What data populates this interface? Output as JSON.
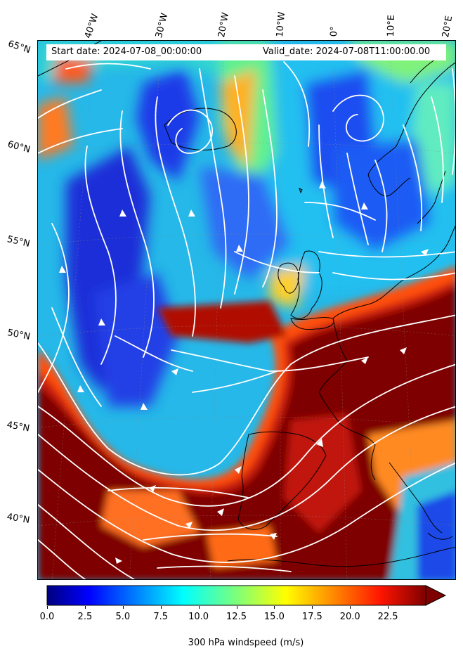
{
  "header": {
    "start_date": "Start date: 2024-07-08_00:00:00",
    "valid_date": "Valid_date: 2024-07-08T11:00:00.00"
  },
  "map": {
    "longitude_labels": [
      "40°W",
      "30°W",
      "20°W",
      "10°W",
      "0°",
      "10°E",
      "20°E"
    ],
    "latitude_labels": [
      "65°N",
      "60°N",
      "55°N",
      "50°N",
      "45°N",
      "40°N"
    ],
    "streamline_color": "#ffffff",
    "coastline_color": "#000000"
  },
  "colorbar": {
    "label": "300 hPa windspeed (m/s)",
    "ticks": [
      "0.0",
      "2.5",
      "5.0",
      "7.5",
      "10.0",
      "12.5",
      "15.0",
      "17.5",
      "20.0",
      "22.5"
    ],
    "min": 0,
    "max": 25,
    "colormap": "jet"
  }
}
